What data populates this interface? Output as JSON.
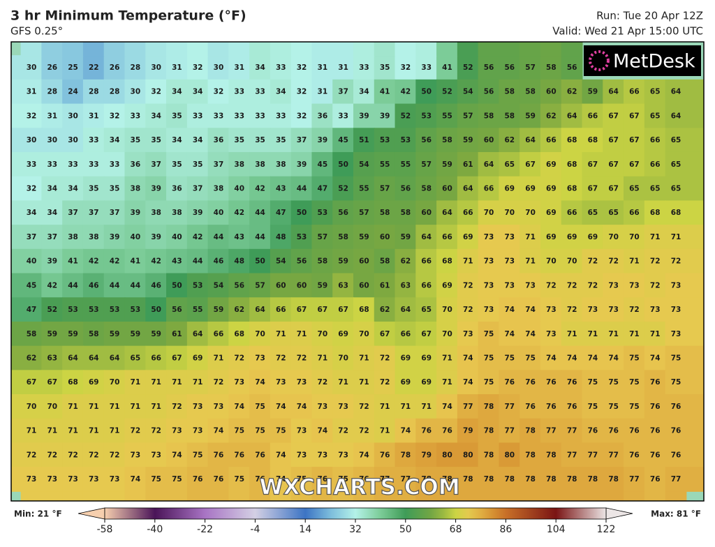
{
  "header": {
    "title": "3 hr Minimum Temperature (°F)",
    "model": "GFS 0.25°",
    "run": "Run: Tue 20 Apr 12Z",
    "valid": "Valid: Wed 21 Apr 15:00 UTC"
  },
  "logo": "MetDesk",
  "watermark": "WXCHARTS.COM",
  "map": {
    "rows": [
      [
        30,
        26,
        25,
        22,
        26,
        28,
        30,
        31,
        32,
        30,
        31,
        34,
        33,
        32,
        31,
        31,
        33,
        35,
        32,
        33,
        41,
        52,
        56,
        56,
        57,
        58,
        56,
        null,
        null,
        null,
        null,
        null
      ],
      [
        31,
        28,
        24,
        28,
        28,
        30,
        32,
        34,
        34,
        32,
        33,
        33,
        34,
        32,
        31,
        37,
        34,
        41,
        42,
        50,
        52,
        54,
        56,
        58,
        58,
        60,
        62,
        59,
        64,
        66,
        65,
        64
      ],
      [
        32,
        31,
        30,
        31,
        32,
        33,
        34,
        35,
        33,
        33,
        33,
        33,
        33,
        32,
        36,
        33,
        39,
        39,
        52,
        53,
        55,
        57,
        58,
        58,
        59,
        62,
        64,
        66,
        67,
        67,
        65,
        64
      ],
      [
        30,
        30,
        30,
        33,
        34,
        35,
        35,
        34,
        34,
        36,
        35,
        35,
        35,
        37,
        39,
        45,
        51,
        53,
        53,
        56,
        58,
        59,
        60,
        62,
        64,
        66,
        68,
        68,
        67,
        67,
        66,
        65
      ],
      [
        33,
        33,
        33,
        33,
        33,
        36,
        37,
        35,
        35,
        37,
        38,
        38,
        38,
        39,
        45,
        50,
        54,
        55,
        55,
        57,
        59,
        61,
        64,
        65,
        67,
        69,
        68,
        67,
        67,
        67,
        66,
        65
      ],
      [
        32,
        34,
        34,
        35,
        35,
        38,
        39,
        36,
        37,
        38,
        40,
        42,
        43,
        44,
        47,
        52,
        55,
        57,
        56,
        58,
        60,
        64,
        66,
        69,
        69,
        69,
        68,
        67,
        67,
        65,
        65,
        65
      ],
      [
        34,
        34,
        37,
        37,
        37,
        39,
        38,
        38,
        39,
        40,
        42,
        44,
        47,
        50,
        53,
        56,
        57,
        58,
        58,
        60,
        64,
        66,
        70,
        70,
        70,
        69,
        66,
        65,
        65,
        66,
        68,
        68
      ],
      [
        37,
        37,
        38,
        38,
        39,
        40,
        39,
        40,
        42,
        44,
        43,
        44,
        48,
        53,
        57,
        58,
        59,
        60,
        59,
        64,
        66,
        69,
        73,
        73,
        71,
        69,
        69,
        69,
        70,
        70,
        71,
        71
      ],
      [
        40,
        39,
        41,
        42,
        42,
        41,
        42,
        43,
        44,
        46,
        48,
        50,
        54,
        56,
        58,
        59,
        60,
        58,
        62,
        66,
        68,
        71,
        73,
        73,
        71,
        70,
        70,
        72,
        72,
        71,
        72,
        72
      ],
      [
        45,
        42,
        44,
        46,
        44,
        44,
        46,
        50,
        53,
        54,
        56,
        57,
        60,
        60,
        59,
        63,
        60,
        61,
        63,
        66,
        69,
        72,
        73,
        73,
        73,
        72,
        72,
        72,
        73,
        73,
        72,
        73
      ],
      [
        47,
        52,
        53,
        53,
        53,
        53,
        50,
        56,
        55,
        59,
        62,
        64,
        66,
        67,
        67,
        67,
        68,
        62,
        64,
        65,
        70,
        72,
        73,
        74,
        74,
        73,
        72,
        73,
        73,
        72,
        73,
        73
      ],
      [
        58,
        59,
        59,
        58,
        59,
        59,
        59,
        61,
        64,
        66,
        68,
        70,
        71,
        71,
        70,
        69,
        70,
        67,
        66,
        67,
        70,
        73,
        75,
        74,
        74,
        73,
        71,
        71,
        71,
        71,
        71,
        73
      ],
      [
        62,
        63,
        64,
        64,
        64,
        65,
        66,
        67,
        69,
        71,
        72,
        73,
        72,
        72,
        71,
        70,
        71,
        72,
        69,
        69,
        71,
        74,
        75,
        75,
        75,
        74,
        74,
        74,
        74,
        75,
        74,
        75
      ],
      [
        67,
        67,
        68,
        69,
        70,
        71,
        71,
        71,
        71,
        72,
        73,
        74,
        73,
        73,
        72,
        71,
        71,
        72,
        69,
        69,
        71,
        74,
        75,
        76,
        76,
        76,
        76,
        75,
        75,
        75,
        76,
        75
      ],
      [
        70,
        70,
        71,
        71,
        71,
        71,
        71,
        72,
        73,
        73,
        74,
        75,
        74,
        74,
        73,
        73,
        72,
        71,
        71,
        71,
        74,
        77,
        78,
        77,
        76,
        76,
        76,
        75,
        75,
        75,
        76,
        76
      ],
      [
        71,
        71,
        71,
        71,
        71,
        72,
        72,
        73,
        73,
        74,
        75,
        75,
        75,
        73,
        74,
        72,
        72,
        71,
        74,
        76,
        76,
        79,
        78,
        77,
        78,
        77,
        77,
        76,
        76,
        76,
        76,
        76
      ],
      [
        72,
        72,
        72,
        72,
        72,
        73,
        73,
        74,
        75,
        76,
        76,
        76,
        74,
        73,
        73,
        73,
        74,
        76,
        78,
        79,
        80,
        80,
        78,
        80,
        78,
        78,
        77,
        77,
        77,
        76,
        76,
        76
      ],
      [
        73,
        73,
        73,
        73,
        73,
        74,
        75,
        75,
        76,
        76,
        75,
        76,
        74,
        75,
        76,
        75,
        76,
        77,
        77,
        78,
        78,
        78,
        78,
        78,
        78,
        78,
        78,
        78,
        78,
        77,
        76,
        77
      ]
    ]
  },
  "colorbar": {
    "ticks": [
      -58,
      -40,
      -22,
      -4,
      14,
      32,
      50,
      68,
      86,
      104,
      122
    ],
    "min_label": "Min: 21 °F",
    "max_label": "Max: 81 °F"
  }
}
